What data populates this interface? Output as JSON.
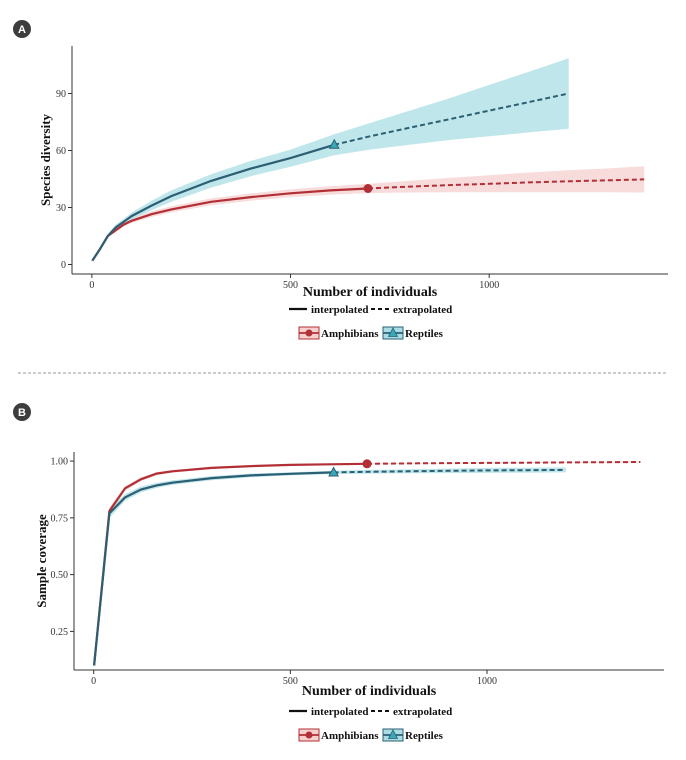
{
  "colors": {
    "amphibians_line": "#b22f36",
    "amphibians_band": "#f6cfcf",
    "reptiles_line": "#2c5f73",
    "reptiles_band": "#a9dde3",
    "reptiles_marker": "#3aa7b8",
    "badge": "#3d3d3d",
    "divider": "#9a9a9a"
  },
  "legend": {
    "interpolated": "interpolated",
    "extrapolated": "extrapolated",
    "amphibians": "Amphibians",
    "reptiles": "Reptiles"
  },
  "chart_data": [
    {
      "type": "line",
      "panel_label": "A",
      "title": "",
      "xlabel": "Number of individuals",
      "ylabel": "Species diversity",
      "xlim": [
        -50,
        1450
      ],
      "ylim": [
        -5,
        115
      ],
      "xticks": [
        "0",
        "500",
        "1000"
      ],
      "xtick_values": [
        0,
        500,
        1000
      ],
      "yticks": [
        "0",
        "30",
        "60",
        "90"
      ],
      "ytick_values": [
        0,
        30,
        60,
        90
      ],
      "series": [
        {
          "name": "Amphibians",
          "observed_x": 695,
          "x": [
            1,
            20,
            40,
            60,
            80,
            100,
            150,
            200,
            300,
            400,
            500,
            600,
            695,
            800,
            900,
            1000,
            1100,
            1200,
            1300,
            1390
          ],
          "y": [
            2,
            8,
            15,
            18,
            21,
            23,
            26.5,
            29,
            33,
            35.5,
            37.5,
            39,
            40,
            41,
            41.8,
            42.5,
            43.2,
            43.8,
            44.3,
            44.8
          ],
          "lower": [
            2,
            8,
            14.5,
            17.5,
            20,
            21.8,
            25,
            27.4,
            31.2,
            33.6,
            35.4,
            36.8,
            37.6,
            37.9,
            38,
            38,
            38,
            38,
            38,
            37.9
          ],
          "upper": [
            2,
            8,
            15.5,
            18.5,
            22,
            24.2,
            28,
            30.6,
            34.8,
            37.4,
            39.6,
            41.2,
            42.4,
            44.1,
            45.6,
            47,
            48.4,
            49.6,
            50.6,
            51.7
          ]
        },
        {
          "name": "Reptiles",
          "observed_x": 610,
          "x": [
            1,
            20,
            40,
            60,
            80,
            100,
            150,
            200,
            300,
            400,
            500,
            610,
            700,
            800,
            900,
            1000,
            1100,
            1200
          ],
          "y": [
            2,
            8,
            15,
            19.5,
            22.5,
            25.5,
            31,
            36,
            44,
            50.5,
            56,
            63,
            67.5,
            72,
            76.5,
            81,
            85.5,
            90
          ],
          "lower": [
            2,
            8,
            14,
            18,
            21,
            23.7,
            28.5,
            33,
            40.5,
            46.5,
            51.5,
            57.5,
            60.5,
            63,
            65.5,
            67.5,
            69.5,
            71.5
          ],
          "upper": [
            2,
            8,
            16,
            21,
            24,
            27.3,
            33.5,
            39,
            47.5,
            54.5,
            60.5,
            68.5,
            74.5,
            81,
            87.5,
            94.5,
            101.5,
            108.5
          ]
        }
      ]
    },
    {
      "type": "line",
      "panel_label": "B",
      "title": "",
      "xlabel": "Number of individuals",
      "ylabel": "Sample coverage",
      "xlim": [
        -50,
        1450
      ],
      "ylim": [
        0.08,
        1.04
      ],
      "xticks": [
        "0",
        "500",
        "1000"
      ],
      "xtick_values": [
        0,
        500,
        1000
      ],
      "yticks": [
        "0.25",
        "0.50",
        "0.75",
        "1.00"
      ],
      "ytick_values": [
        0.25,
        0.5,
        0.75,
        1.0
      ],
      "series": [
        {
          "name": "Amphibians",
          "observed_x": 695,
          "x": [
            1,
            40,
            80,
            120,
            160,
            200,
            300,
            400,
            500,
            600,
            695,
            800,
            900,
            1000,
            1100,
            1200,
            1300,
            1390
          ],
          "y": [
            0.1,
            0.78,
            0.88,
            0.92,
            0.945,
            0.955,
            0.97,
            0.978,
            0.983,
            0.986,
            0.988,
            0.99,
            0.991,
            0.992,
            0.993,
            0.994,
            0.995,
            0.996
          ],
          "lower": [
            0.1,
            0.765,
            0.87,
            0.912,
            0.938,
            0.949,
            0.965,
            0.974,
            0.98,
            0.983,
            0.986,
            0.988,
            0.989,
            0.99,
            0.991,
            0.992,
            0.993,
            0.994
          ],
          "upper": [
            0.1,
            0.795,
            0.89,
            0.928,
            0.952,
            0.961,
            0.975,
            0.982,
            0.986,
            0.989,
            0.99,
            0.992,
            0.993,
            0.994,
            0.995,
            0.996,
            0.997,
            0.998
          ]
        },
        {
          "name": "Reptiles",
          "observed_x": 610,
          "x": [
            1,
            40,
            80,
            120,
            160,
            200,
            300,
            400,
            500,
            610,
            700,
            800,
            900,
            1000,
            1100,
            1200
          ],
          "y": [
            0.1,
            0.77,
            0.84,
            0.875,
            0.893,
            0.905,
            0.925,
            0.937,
            0.944,
            0.95,
            0.953,
            0.955,
            0.957,
            0.959,
            0.96,
            0.961
          ],
          "lower": [
            0.1,
            0.75,
            0.825,
            0.862,
            0.882,
            0.895,
            0.916,
            0.929,
            0.937,
            0.943,
            0.945,
            0.946,
            0.947,
            0.948,
            0.949,
            0.95
          ],
          "upper": [
            0.1,
            0.79,
            0.855,
            0.888,
            0.904,
            0.915,
            0.934,
            0.945,
            0.951,
            0.957,
            0.961,
            0.964,
            0.967,
            0.97,
            0.971,
            0.972
          ]
        }
      ]
    }
  ]
}
